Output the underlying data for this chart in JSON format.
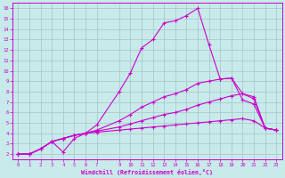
{
  "xlabel": "Windchill (Refroidissement éolien,°C)",
  "bg_color": "#c8eaea",
  "grid_color": "#a8cccc",
  "line_color": "#cc00cc",
  "xlim": [
    -0.5,
    23.5
  ],
  "ylim": [
    1.5,
    16.5
  ],
  "xticks": [
    0,
    1,
    2,
    3,
    4,
    5,
    6,
    7,
    9,
    10,
    11,
    12,
    13,
    14,
    15,
    16,
    17,
    18,
    19,
    20,
    21,
    22,
    23
  ],
  "yticks": [
    2,
    3,
    4,
    5,
    6,
    7,
    8,
    9,
    10,
    11,
    12,
    13,
    14,
    15,
    16
  ],
  "line1_x": [
    0,
    1,
    2,
    3,
    4,
    5,
    6,
    7,
    9,
    10,
    11,
    12,
    13,
    14,
    15,
    16,
    17,
    18,
    19,
    20,
    21,
    22,
    23
  ],
  "line1_y": [
    2.0,
    2.0,
    2.5,
    3.2,
    2.2,
    3.5,
    4.0,
    4.8,
    8.0,
    9.8,
    12.2,
    13.0,
    14.6,
    14.8,
    15.3,
    16.0,
    12.5,
    9.2,
    9.3,
    7.2,
    6.8,
    4.5,
    4.3
  ],
  "line2_x": [
    0,
    1,
    2,
    3,
    4,
    5,
    6,
    7,
    9,
    10,
    11,
    12,
    13,
    14,
    15,
    16,
    17,
    18,
    19,
    20,
    21,
    22,
    23
  ],
  "line2_y": [
    2.0,
    2.0,
    2.5,
    3.2,
    3.5,
    3.8,
    4.0,
    4.3,
    5.2,
    5.8,
    6.5,
    7.0,
    7.5,
    7.8,
    8.2,
    8.8,
    9.0,
    9.2,
    9.3,
    7.8,
    7.3,
    4.5,
    4.3
  ],
  "line3_x": [
    0,
    1,
    2,
    3,
    4,
    5,
    6,
    7,
    9,
    10,
    11,
    12,
    13,
    14,
    15,
    16,
    17,
    18,
    19,
    20,
    21,
    22,
    23
  ],
  "line3_y": [
    2.0,
    2.0,
    2.5,
    3.2,
    3.5,
    3.8,
    4.0,
    4.2,
    4.6,
    4.9,
    5.2,
    5.5,
    5.8,
    6.0,
    6.3,
    6.7,
    7.0,
    7.3,
    7.6,
    7.8,
    7.5,
    4.5,
    4.3
  ],
  "line4_x": [
    0,
    1,
    2,
    3,
    4,
    5,
    6,
    7,
    9,
    10,
    11,
    12,
    13,
    14,
    15,
    16,
    17,
    18,
    19,
    20,
    21,
    22,
    23
  ],
  "line4_y": [
    2.0,
    2.0,
    2.5,
    3.2,
    3.5,
    3.8,
    4.0,
    4.1,
    4.3,
    4.4,
    4.5,
    4.6,
    4.7,
    4.8,
    4.9,
    5.0,
    5.1,
    5.2,
    5.3,
    5.4,
    5.2,
    4.5,
    4.3
  ]
}
